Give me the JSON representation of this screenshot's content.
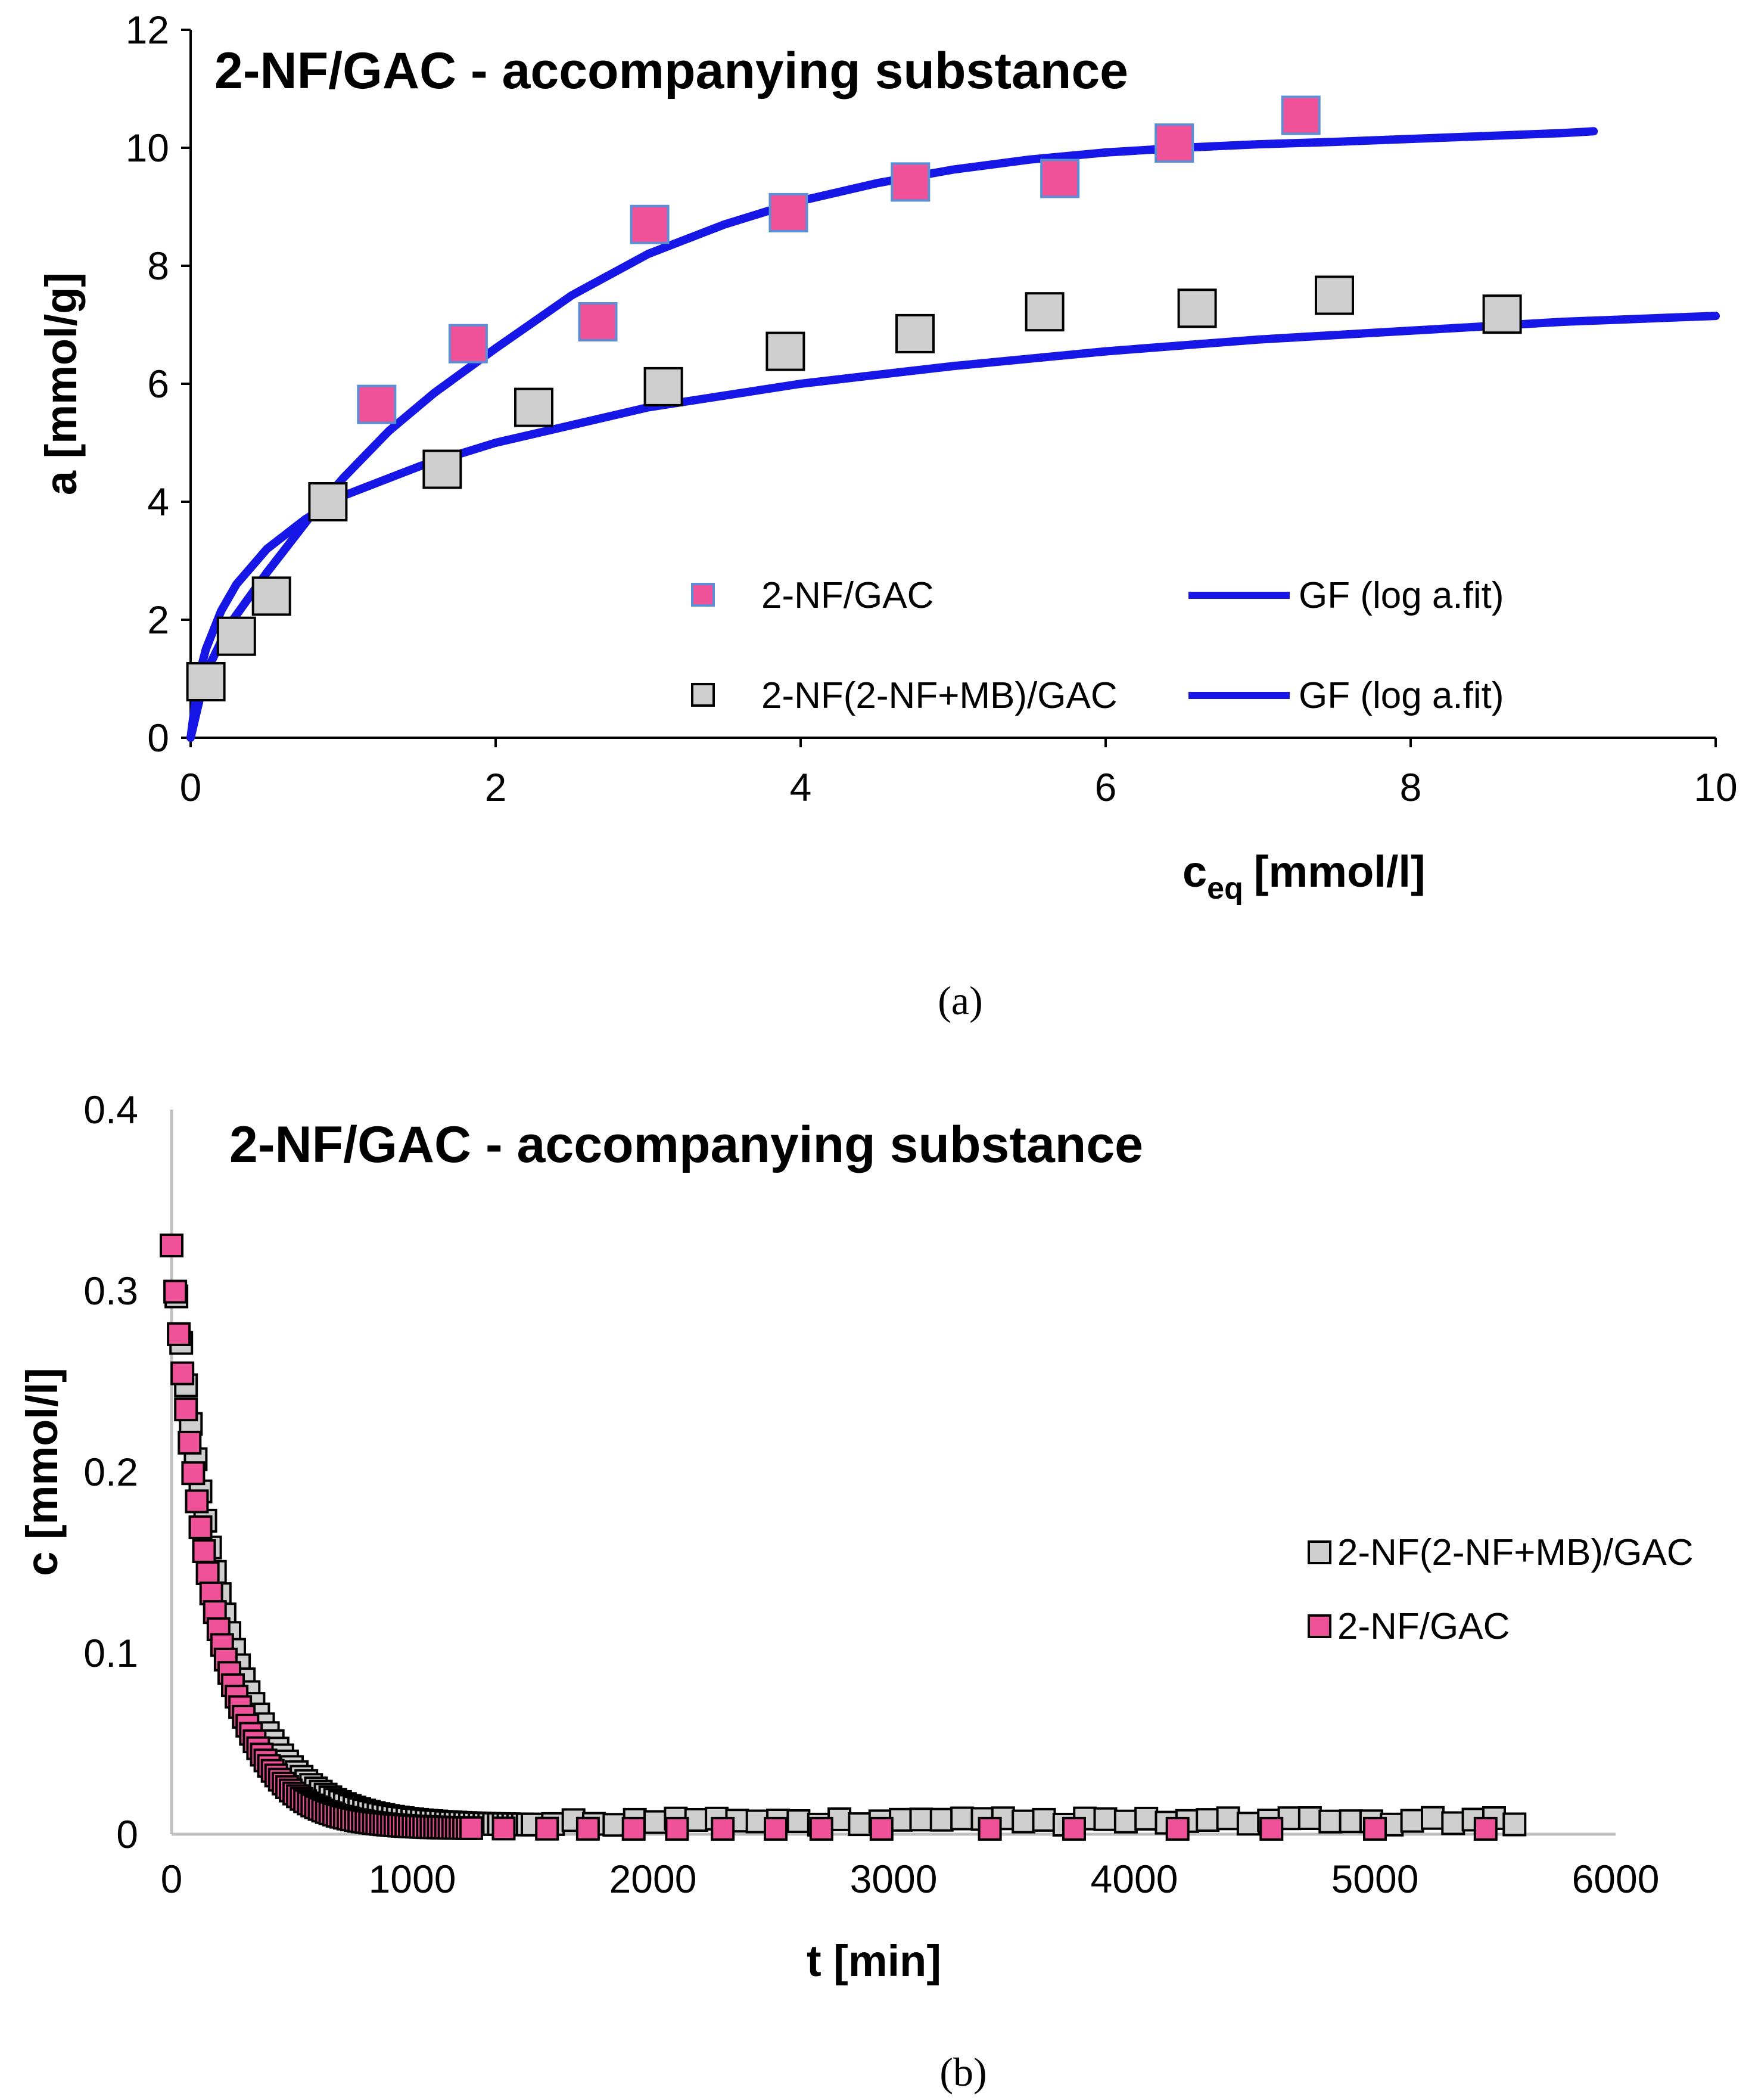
{
  "chart_data": [
    {
      "id": "a",
      "type": "scatter",
      "title": "2-NF/GAC - accompanying substance",
      "xlabel": "c",
      "xlabel_sub": "eq",
      "xlabel_unit": "[mmol/l]",
      "ylabel": "a [mmol/g]",
      "xlim": [
        0,
        10
      ],
      "ylim": [
        0,
        12
      ],
      "xticks": [
        0,
        2,
        4,
        6,
        8,
        10
      ],
      "yticks": [
        0,
        2,
        4,
        6,
        8,
        10,
        12
      ],
      "xtick_labels": [
        "0",
        "2",
        "4",
        "6",
        "8",
        "10"
      ],
      "ytick_labels": [
        "0",
        "2",
        "4",
        "6",
        "8",
        "10",
        "12"
      ],
      "grid": false,
      "legend_position": "center-right",
      "caption": "(a)",
      "series": [
        {
          "name": "2-NF/GAC",
          "kind": "markers",
          "marker_color": "#f0529a",
          "marker_edge": "#5a8fd6",
          "x": [
            1.22,
            1.82,
            2.67,
            3.01,
            3.92,
            4.72,
            5.7,
            6.45,
            7.28
          ],
          "y": [
            5.65,
            6.68,
            7.05,
            8.7,
            8.9,
            9.42,
            9.48,
            10.08,
            10.55
          ]
        },
        {
          "name": "GF (log a.fit)",
          "kind": "line",
          "color": "#1616e6",
          "fit_for": "2-NF/GAC",
          "x": [
            0,
            0.1,
            0.25,
            0.5,
            0.8,
            1.0,
            1.3,
            1.6,
            2.0,
            2.5,
            3.0,
            3.5,
            4.0,
            4.5,
            5.0,
            5.5,
            6.0,
            6.5,
            7.0,
            7.5,
            8.0,
            8.5,
            9.0,
            9.2
          ],
          "y": [
            0,
            1.1,
            1.9,
            2.8,
            3.8,
            4.4,
            5.2,
            5.85,
            6.6,
            7.5,
            8.2,
            8.7,
            9.1,
            9.4,
            9.63,
            9.8,
            9.92,
            10.0,
            10.06,
            10.1,
            10.15,
            10.2,
            10.25,
            10.28
          ]
        },
        {
          "name": "2-NF(2-NF+MB)/GAC",
          "kind": "markers",
          "marker_color": "#cfcfcf",
          "marker_edge": "#000000",
          "x": [
            0.1,
            0.3,
            0.53,
            0.9,
            1.65,
            2.25,
            3.1,
            3.9,
            4.75,
            5.6,
            6.6,
            7.5,
            8.6
          ],
          "y": [
            0.95,
            1.72,
            2.4,
            4.0,
            4.55,
            5.6,
            5.95,
            6.55,
            6.85,
            7.22,
            7.28,
            7.5,
            7.18
          ]
        },
        {
          "name": "GF (log a.fit)",
          "kind": "line",
          "color": "#1616e6",
          "fit_for": "2-NF(2-NF+MB)/GAC",
          "x": [
            0,
            0.05,
            0.1,
            0.2,
            0.3,
            0.5,
            0.75,
            1.0,
            1.5,
            2.0,
            2.5,
            3.0,
            3.5,
            4.0,
            4.5,
            5.0,
            6.0,
            7.0,
            8.0,
            9.0,
            10.0
          ],
          "y": [
            0,
            1.0,
            1.5,
            2.15,
            2.6,
            3.2,
            3.7,
            4.1,
            4.6,
            5.0,
            5.3,
            5.6,
            5.8,
            6.0,
            6.15,
            6.3,
            6.55,
            6.75,
            6.9,
            7.05,
            7.15
          ]
        }
      ]
    },
    {
      "id": "b",
      "type": "scatter",
      "title": "2-NF/GAC - accompanying substance",
      "xlabel": "t [min]",
      "ylabel": "c [mmol/l]",
      "xlim": [
        0,
        6000
      ],
      "ylim": [
        0,
        0.4
      ],
      "xticks": [
        0,
        1000,
        2000,
        3000,
        4000,
        5000,
        6000
      ],
      "yticks": [
        0,
        0.1,
        0.2,
        0.3,
        0.4
      ],
      "xtick_labels": [
        "0",
        "1000",
        "2000",
        "3000",
        "4000",
        "5000",
        "6000"
      ],
      "ytick_labels": [
        "0",
        "0.1",
        "0.2",
        "0.3",
        "0.4"
      ],
      "grid": false,
      "legend_position": "center-right",
      "caption": "(b)",
      "series": [
        {
          "name": "2-NF(2-NF+MB)/GAC",
          "kind": "markers",
          "marker_color": "#cfcfcf",
          "marker_edge": "#000000",
          "model": {
            "c0": 0.325,
            "k": 0.0046,
            "floor": 0.005
          },
          "t_start": 0,
          "t_step_early": 20,
          "t_early_end": 1500,
          "t_step_late": 85,
          "t_end": 5620
        },
        {
          "name": "2-NF/GAC",
          "kind": "markers",
          "marker_color": "#f0529a",
          "marker_edge": "#000000",
          "model": {
            "c0": 0.325,
            "k": 0.0055,
            "floor": 0.003
          },
          "t_start": 0,
          "t_step_early": 15,
          "t_early_end": 1250,
          "t_late": [
            1380,
            1560,
            1730,
            1920,
            2100,
            2290,
            2510,
            2700,
            2950,
            3400,
            3750,
            4180,
            4570,
            5000,
            5460
          ]
        }
      ]
    }
  ],
  "legend_a": [
    {
      "label": "2-NF/GAC",
      "kind": "marker",
      "color": "#f0529a",
      "edge": "#5a8fd6"
    },
    {
      "label": "GF (log a.fit)",
      "kind": "line",
      "color": "#1616e6"
    },
    {
      "label": "2-NF(2-NF+MB)/GAC",
      "kind": "marker",
      "color": "#cfcfcf",
      "edge": "#000000"
    },
    {
      "label": "GF (log a.fit)",
      "kind": "line",
      "color": "#1616e6"
    }
  ],
  "legend_b": [
    {
      "label": "2-NF(2-NF+MB)/GAC",
      "kind": "marker",
      "color": "#cfcfcf",
      "edge": "#000000"
    },
    {
      "label": "2-NF/GAC",
      "kind": "marker",
      "color": "#f0529a",
      "edge": "#000000"
    }
  ]
}
